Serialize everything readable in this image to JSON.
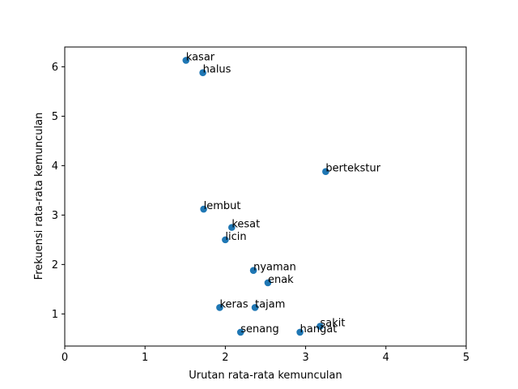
{
  "chart_data": {
    "type": "scatter",
    "title": "",
    "xlabel": "Urutan rata-rata kemunculan",
    "ylabel": "Frekuensi rata-rata kemunculan",
    "xlim": [
      0,
      5
    ],
    "ylim": [
      0.35,
      6.4
    ],
    "xticks": [
      "0",
      "1",
      "2",
      "3",
      "4",
      "5"
    ],
    "yticks": [
      "1",
      "2",
      "3",
      "4",
      "5",
      "6"
    ],
    "grid": false,
    "legend": "none",
    "marker_color": "#1f77b4",
    "points": [
      {
        "label": "kasar",
        "x": 1.51,
        "y": 6.13
      },
      {
        "label": "halus",
        "x": 1.72,
        "y": 5.88
      },
      {
        "label": "bertekstur",
        "x": 3.25,
        "y": 3.88
      },
      {
        "label": "lembut",
        "x": 1.73,
        "y": 3.12
      },
      {
        "label": "kesat",
        "x": 2.08,
        "y": 2.75
      },
      {
        "label": "licin",
        "x": 2.0,
        "y": 2.5
      },
      {
        "label": "nyaman",
        "x": 2.35,
        "y": 1.88
      },
      {
        "label": "enak",
        "x": 2.53,
        "y": 1.63
      },
      {
        "label": "keras",
        "x": 1.93,
        "y": 1.13
      },
      {
        "label": "tajam",
        "x": 2.37,
        "y": 1.13
      },
      {
        "label": "sakit",
        "x": 3.18,
        "y": 0.75
      },
      {
        "label": "hangat",
        "x": 2.93,
        "y": 0.63
      },
      {
        "label": "senang",
        "x": 2.19,
        "y": 0.63
      }
    ]
  }
}
